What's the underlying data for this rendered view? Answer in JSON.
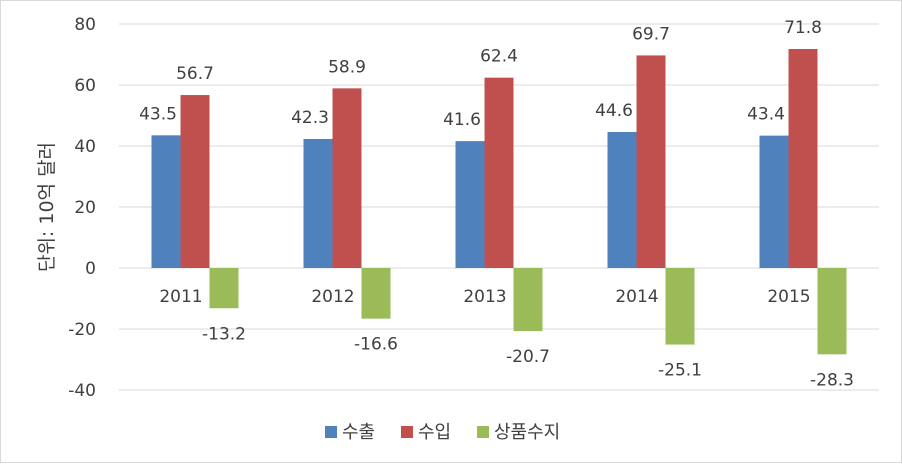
{
  "chart_data": {
    "type": "bar",
    "title": "",
    "ylabel": "단위: 10억 달러",
    "xlabel": "",
    "categories": [
      "2011",
      "2012",
      "2013",
      "2014",
      "2015"
    ],
    "ylim": [
      -40,
      80
    ],
    "yticks": [
      80,
      60,
      40,
      20,
      0,
      -20,
      -40
    ],
    "grid": true,
    "legend_position": "bottom",
    "series": [
      {
        "name": "수출",
        "color": "#4f81bd",
        "values": [
          43.5,
          42.3,
          41.6,
          44.6,
          43.4
        ]
      },
      {
        "name": "수입",
        "color": "#c0504d",
        "values": [
          56.7,
          58.9,
          62.4,
          69.7,
          71.8
        ]
      },
      {
        "name": "상품수지",
        "color": "#9bbb59",
        "values": [
          -13.2,
          -16.6,
          -20.7,
          -25.1,
          -28.3
        ]
      }
    ]
  }
}
